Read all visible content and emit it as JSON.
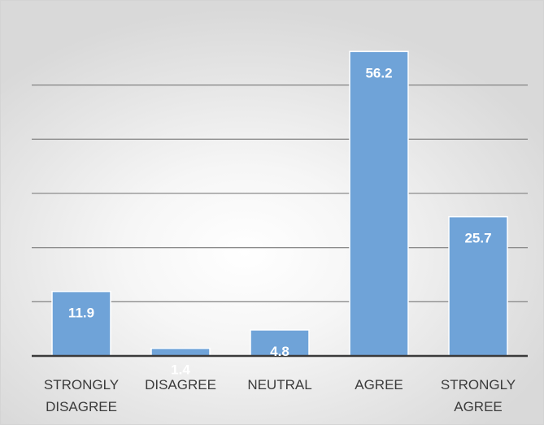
{
  "chart_data": {
    "type": "bar",
    "title": "",
    "xlabel": "",
    "ylabel": "",
    "categories": [
      "STRONGLY DISAGREE",
      "DISAGREE",
      "NEUTRAL",
      "AGREE",
      "STRONGLY AGREE"
    ],
    "category_lines": [
      [
        "STRONGLY",
        "DISAGREE"
      ],
      [
        "DISAGREE"
      ],
      [
        "NEUTRAL"
      ],
      [
        "AGREE"
      ],
      [
        "STRONGLY",
        "AGREE"
      ]
    ],
    "values": [
      11.9,
      1.4,
      4.8,
      56.2,
      25.7
    ],
    "data_labels": [
      "11.9",
      "1.4",
      "4.8",
      "56.2",
      "25.7"
    ],
    "ylim": [
      0,
      60
    ],
    "grid": true,
    "legend": "none",
    "bar_color": "#6fa3d8",
    "label_color": "#ffffff"
  }
}
